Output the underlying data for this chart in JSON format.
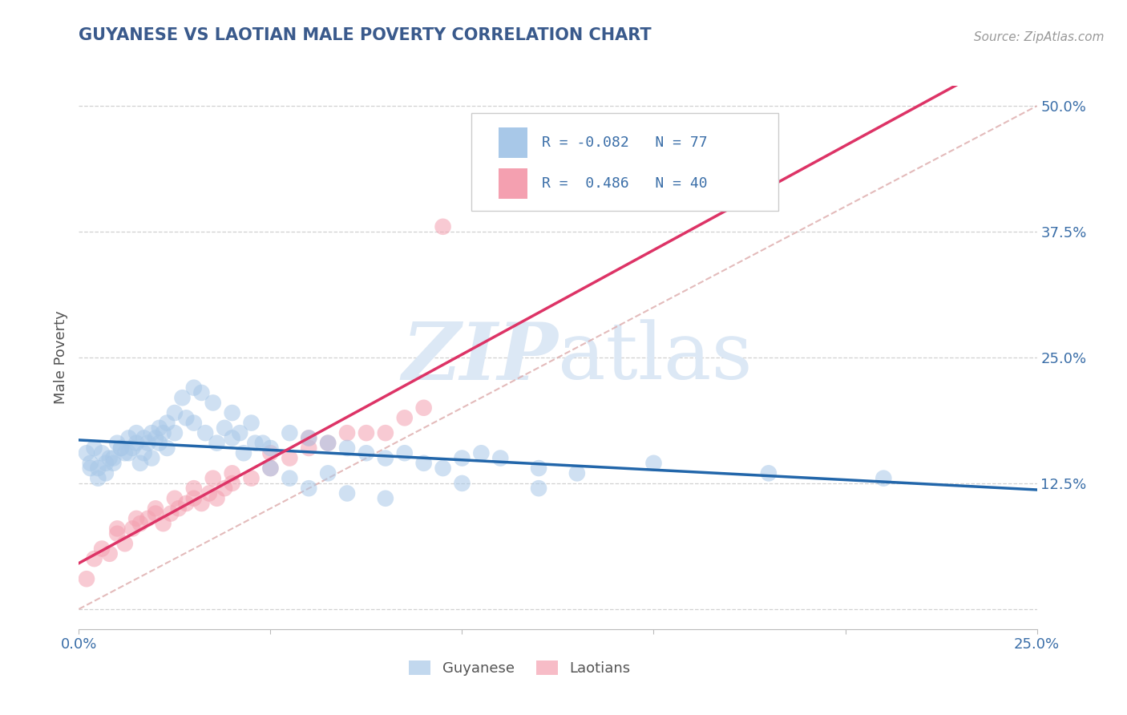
{
  "title": "GUYANESE VS LAOTIAN MALE POVERTY CORRELATION CHART",
  "source": "Source: ZipAtlas.com",
  "ylabel": "Male Poverty",
  "xlim": [
    0.0,
    0.25
  ],
  "ylim": [
    -0.02,
    0.52
  ],
  "xticks": [
    0.0,
    0.25
  ],
  "xticklabels": [
    "0.0%",
    "25.0%"
  ],
  "ytick_vals": [
    0.125,
    0.25,
    0.375,
    0.5
  ],
  "yticklabels": [
    "12.5%",
    "25.0%",
    "37.5%",
    "50.0%"
  ],
  "guyanese_R": -0.082,
  "guyanese_N": 77,
  "laotian_R": 0.486,
  "laotian_N": 40,
  "blue_color": "#a8c8e8",
  "pink_color": "#f4a0b0",
  "blue_line_color": "#2266aa",
  "pink_line_color": "#dd3366",
  "title_color": "#3a5a8c",
  "axis_color": "#3a6ea8",
  "watermark_color": "#dce8f5",
  "grid_color": "#cccccc",
  "diag_color": "#ddaaaa",
  "background_color": "#ffffff",
  "guyanese_x": [
    0.002,
    0.003,
    0.004,
    0.005,
    0.006,
    0.007,
    0.008,
    0.009,
    0.01,
    0.011,
    0.012,
    0.013,
    0.014,
    0.015,
    0.016,
    0.017,
    0.018,
    0.019,
    0.02,
    0.021,
    0.022,
    0.023,
    0.025,
    0.027,
    0.03,
    0.032,
    0.035,
    0.038,
    0.04,
    0.042,
    0.045,
    0.048,
    0.05,
    0.055,
    0.06,
    0.065,
    0.07,
    0.075,
    0.08,
    0.085,
    0.09,
    0.095,
    0.1,
    0.105,
    0.11,
    0.12,
    0.13,
    0.15,
    0.18,
    0.21,
    0.003,
    0.005,
    0.007,
    0.009,
    0.011,
    0.013,
    0.015,
    0.017,
    0.019,
    0.021,
    0.023,
    0.025,
    0.028,
    0.03,
    0.033,
    0.036,
    0.04,
    0.043,
    0.046,
    0.05,
    0.055,
    0.06,
    0.065,
    0.07,
    0.08,
    0.1,
    0.12
  ],
  "guyanese_y": [
    0.155,
    0.145,
    0.16,
    0.14,
    0.155,
    0.135,
    0.15,
    0.145,
    0.165,
    0.16,
    0.155,
    0.17,
    0.16,
    0.175,
    0.145,
    0.155,
    0.165,
    0.15,
    0.17,
    0.18,
    0.175,
    0.185,
    0.195,
    0.21,
    0.22,
    0.215,
    0.205,
    0.18,
    0.195,
    0.175,
    0.185,
    0.165,
    0.16,
    0.175,
    0.17,
    0.165,
    0.16,
    0.155,
    0.15,
    0.155,
    0.145,
    0.14,
    0.15,
    0.155,
    0.15,
    0.14,
    0.135,
    0.145,
    0.135,
    0.13,
    0.14,
    0.13,
    0.145,
    0.15,
    0.16,
    0.155,
    0.165,
    0.17,
    0.175,
    0.165,
    0.16,
    0.175,
    0.19,
    0.185,
    0.175,
    0.165,
    0.17,
    0.155,
    0.165,
    0.14,
    0.13,
    0.12,
    0.135,
    0.115,
    0.11,
    0.125,
    0.12
  ],
  "laotian_x": [
    0.002,
    0.004,
    0.006,
    0.008,
    0.01,
    0.012,
    0.014,
    0.016,
    0.018,
    0.02,
    0.022,
    0.024,
    0.026,
    0.028,
    0.03,
    0.032,
    0.034,
    0.036,
    0.038,
    0.04,
    0.045,
    0.05,
    0.055,
    0.06,
    0.065,
    0.07,
    0.075,
    0.08,
    0.085,
    0.09,
    0.01,
    0.015,
    0.02,
    0.025,
    0.03,
    0.035,
    0.04,
    0.05,
    0.06,
    0.095
  ],
  "laotian_y": [
    0.03,
    0.05,
    0.06,
    0.055,
    0.075,
    0.065,
    0.08,
    0.085,
    0.09,
    0.095,
    0.085,
    0.095,
    0.1,
    0.105,
    0.11,
    0.105,
    0.115,
    0.11,
    0.12,
    0.125,
    0.13,
    0.14,
    0.15,
    0.16,
    0.165,
    0.175,
    0.175,
    0.175,
    0.19,
    0.2,
    0.08,
    0.09,
    0.1,
    0.11,
    0.12,
    0.13,
    0.135,
    0.155,
    0.17,
    0.38
  ]
}
